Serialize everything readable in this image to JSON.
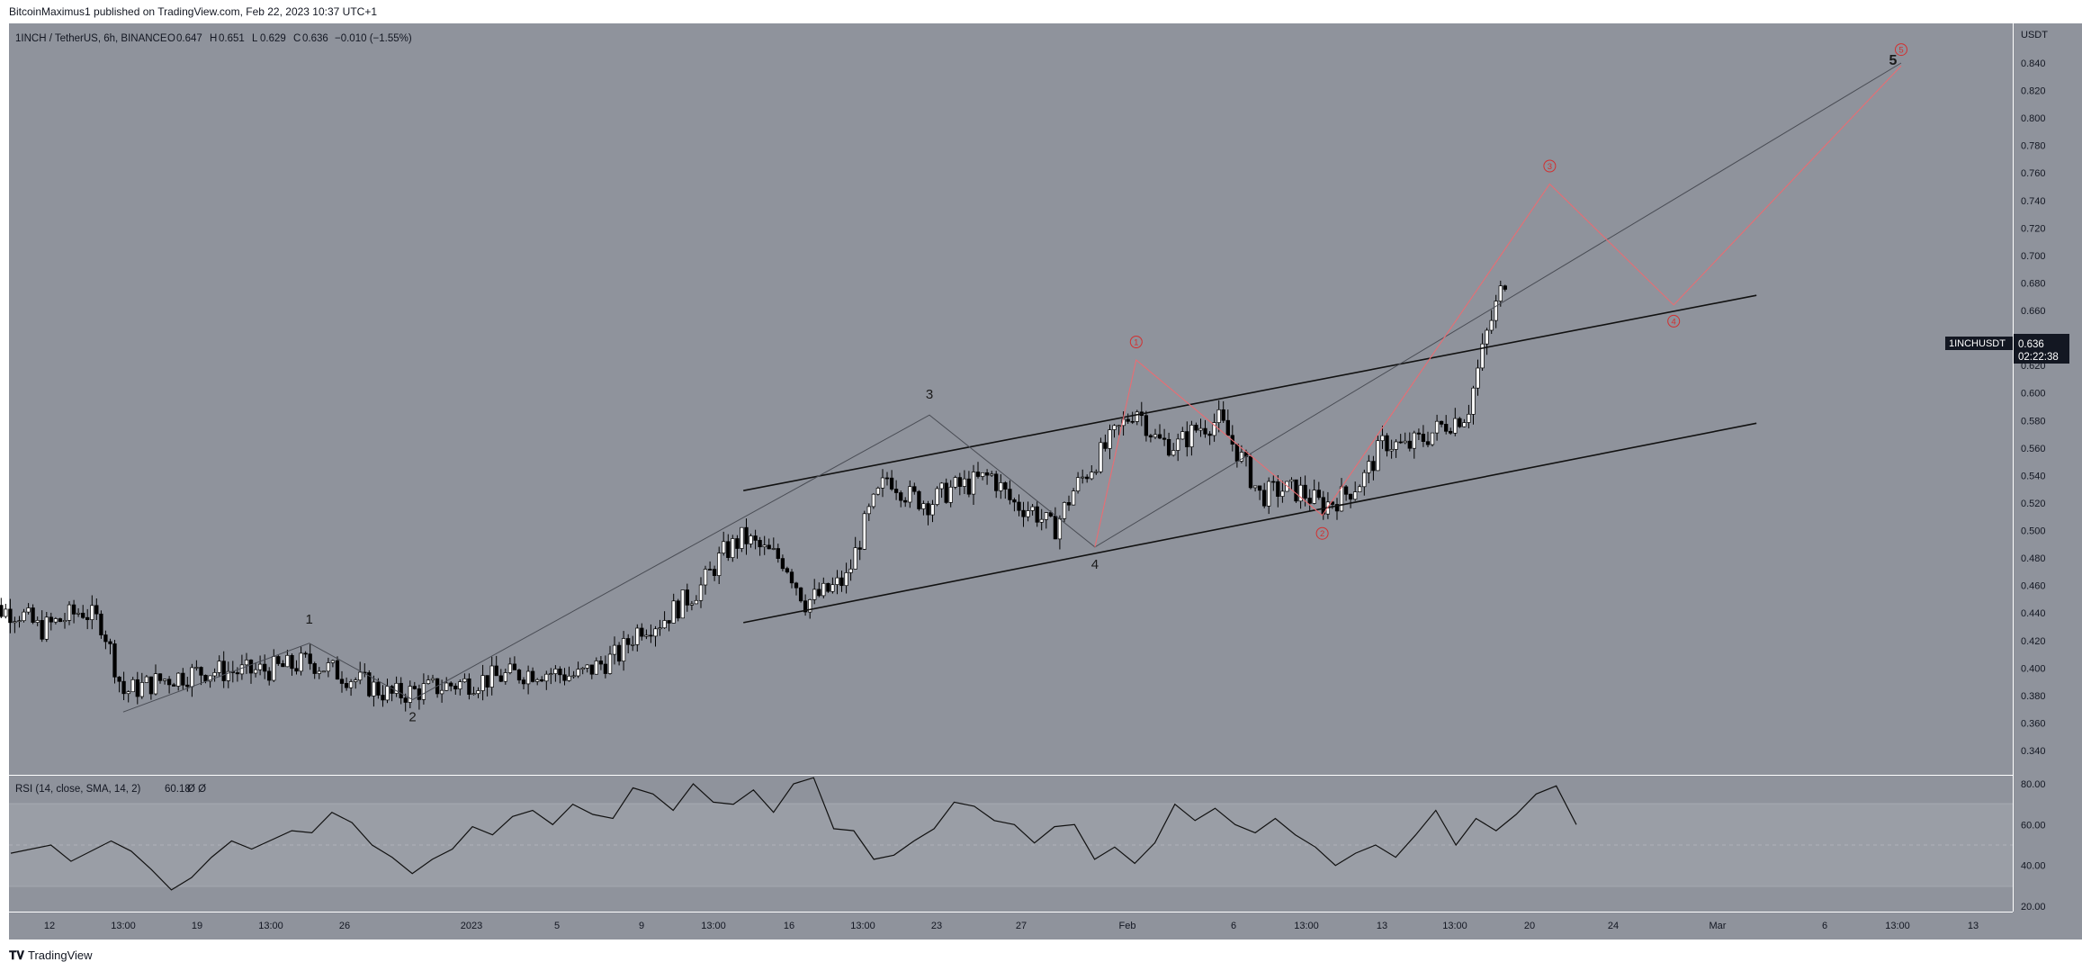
{
  "header": {
    "publisher_text": "BitcoinMaximus1 published on TradingView.com, Feb 22, 2023 10:37 UTC+1"
  },
  "footer": {
    "brand": "TradingView",
    "brand_icon": "tradingview-logo-icon"
  },
  "legend": {
    "symbol": "1INCH / TetherUS, 6h, BINANCE",
    "o_label": "O",
    "o": "0.647",
    "h_label": "H",
    "h": "0.651",
    "l_label": "L",
    "l": "0.629",
    "c_label": "C",
    "c": "0.636",
    "change": "−0.010 (−1.55%)"
  },
  "price_axis": {
    "currency": "USDT",
    "ticks": [
      "0.840",
      "0.820",
      "0.800",
      "0.780",
      "0.760",
      "0.740",
      "0.720",
      "0.700",
      "0.680",
      "0.660",
      "0.640",
      "0.620",
      "0.600",
      "0.580",
      "0.560",
      "0.540",
      "0.520",
      "0.500",
      "0.480",
      "0.460",
      "0.440",
      "0.420",
      "0.400",
      "0.380",
      "0.360",
      "0.340"
    ],
    "last_price_tag": {
      "symbol": "1INCHUSDT",
      "price": "0.636",
      "countdown": "02:22:38"
    }
  },
  "rsi": {
    "legend": "RSI (14, close, SMA, 14, 2)",
    "value": "60.18",
    "extra": "Ø  Ø",
    "ticks": [
      "80.00",
      "60.00",
      "40.00",
      "20.00"
    ]
  },
  "time_axis": {
    "labels": [
      "12",
      "13:00",
      "19",
      "13:00",
      "26",
      "2023",
      "5",
      "9",
      "13:00",
      "16",
      "13:00",
      "23",
      "27",
      "Feb",
      "6",
      "13:00",
      "13",
      "13:00",
      "20",
      "24",
      "Mar",
      "6",
      "13:00",
      "13"
    ]
  },
  "wave_labels": {
    "black": [
      "1",
      "2",
      "3",
      "4",
      "5"
    ],
    "red": [
      "1",
      "2",
      "3",
      "4",
      "5"
    ]
  },
  "colors": {
    "chart_bg": "#8f939c",
    "rsi_band": "#9a9ea6",
    "candle_up": "#ffffff",
    "candle_down": "#000000",
    "projection": "#e86d73",
    "red_label": "#d32f2f",
    "channel_line": "#111111"
  },
  "chart_data": [
    {
      "type": "candlestick",
      "title": "1INCH / TetherUS, 6h, BINANCE",
      "ylabel": "USDT",
      "ylim": [
        0.33,
        0.855
      ],
      "x_range": [
        "2022-12-10",
        "2023-03-13"
      ],
      "close_path": [
        [
          "2022-12-10",
          0.445
        ],
        [
          "2022-12-12",
          0.44
        ],
        [
          "2022-12-13",
          0.428
        ],
        [
          "2022-12-15",
          0.442
        ],
        [
          "2022-12-16",
          0.432
        ],
        [
          "2022-12-17",
          0.382
        ],
        [
          "2022-12-19",
          0.392
        ],
        [
          "2022-12-21",
          0.398
        ],
        [
          "2022-12-23",
          0.397
        ],
        [
          "2022-12-25",
          0.401
        ],
        [
          "2022-12-26",
          0.405
        ],
        [
          "2022-12-28",
          0.393
        ],
        [
          "2022-12-30",
          0.38
        ],
        [
          "2023-01-02",
          0.388
        ],
        [
          "2023-01-04",
          0.393
        ],
        [
          "2023-01-06",
          0.398
        ],
        [
          "2023-01-08",
          0.394
        ],
        [
          "2023-01-10",
          0.41
        ],
        [
          "2023-01-11",
          0.43
        ],
        [
          "2023-01-12",
          0.434
        ],
        [
          "2023-01-14",
          0.46
        ],
        [
          "2023-01-15",
          0.483
        ],
        [
          "2023-01-16",
          0.495
        ],
        [
          "2023-01-17",
          0.485
        ],
        [
          "2023-01-18",
          0.478
        ],
        [
          "2023-01-19",
          0.448
        ],
        [
          "2023-01-20",
          0.455
        ],
        [
          "2023-01-21",
          0.465
        ],
        [
          "2023-01-22",
          0.51
        ],
        [
          "2023-01-23",
          0.54
        ],
        [
          "2023-01-24",
          0.525
        ],
        [
          "2023-01-25",
          0.52
        ],
        [
          "2023-01-26",
          0.53
        ],
        [
          "2023-01-27",
          0.534
        ],
        [
          "2023-01-28",
          0.54
        ],
        [
          "2023-01-29",
          0.52
        ],
        [
          "2023-01-30",
          0.515
        ],
        [
          "2023-01-31",
          0.5
        ],
        [
          "2023-02-01",
          0.53
        ],
        [
          "2023-02-02",
          0.55
        ],
        [
          "2023-02-03",
          0.57
        ],
        [
          "2023-02-04",
          0.59
        ],
        [
          "2023-02-05",
          0.565
        ],
        [
          "2023-02-06",
          0.562
        ],
        [
          "2023-02-07",
          0.575
        ],
        [
          "2023-02-08",
          0.58
        ],
        [
          "2023-02-09",
          0.555
        ],
        [
          "2023-02-10",
          0.525
        ],
        [
          "2023-02-11",
          0.53
        ],
        [
          "2023-02-12",
          0.528
        ],
        [
          "2023-02-13",
          0.518
        ],
        [
          "2023-02-14",
          0.525
        ],
        [
          "2023-02-15",
          0.538
        ],
        [
          "2023-02-16",
          0.565
        ],
        [
          "2023-02-17",
          0.56
        ],
        [
          "2023-02-18",
          0.568
        ],
        [
          "2023-02-19",
          0.578
        ],
        [
          "2023-02-20",
          0.585
        ],
        [
          "2023-02-21",
          0.645
        ],
        [
          "2023-02-22",
          0.69
        ],
        [
          "2023-02-22",
          0.636
        ]
      ],
      "channel": {
        "upper": [
          [
            "2023-01-16",
            0.529
          ],
          [
            "2023-03-06",
            0.671
          ]
        ],
        "lower": [
          [
            "2023-01-16",
            0.433
          ],
          [
            "2023-03-06",
            0.578
          ]
        ]
      },
      "completed_waves": [
        {
          "label": "1",
          "date": "2022-12-26",
          "price": 0.418
        },
        {
          "label": "2",
          "date": "2022-12-31",
          "price": 0.377
        },
        {
          "label": "3",
          "date": "2023-01-25",
          "price": 0.584
        },
        {
          "label": "4",
          "date": "2023-02-02",
          "price": 0.488
        },
        {
          "label": "5",
          "date": "2023-03-13",
          "price": 0.84
        }
      ],
      "projected_waves": [
        {
          "label": "1",
          "date": "2023-02-04",
          "price": 0.624
        },
        {
          "label": "2",
          "date": "2023-02-13",
          "price": 0.511
        },
        {
          "label": "3",
          "date": "2023-02-24",
          "price": 0.752
        },
        {
          "label": "4",
          "date": "2023-03-02",
          "price": 0.664
        },
        {
          "label": "5",
          "date": "2023-03-13",
          "price": 0.838
        }
      ]
    },
    {
      "type": "line",
      "title": "RSI (14, close, SMA, 14, 2)",
      "ylim": [
        17,
        86
      ],
      "bands": [
        30,
        50,
        70
      ],
      "series": [
        {
          "values": [
            [
              0.0,
              46
            ],
            [
              0.02,
              50
            ],
            [
              0.03,
              42
            ],
            [
              0.05,
              52
            ],
            [
              0.06,
              47
            ],
            [
              0.07,
              38
            ],
            [
              0.08,
              28
            ],
            [
              0.09,
              34
            ],
            [
              0.1,
              44
            ],
            [
              0.11,
              52
            ],
            [
              0.12,
              48
            ],
            [
              0.14,
              57
            ],
            [
              0.15,
              56
            ],
            [
              0.16,
              66
            ],
            [
              0.17,
              61
            ],
            [
              0.18,
              50
            ],
            [
              0.19,
              44
            ],
            [
              0.2,
              36
            ],
            [
              0.21,
              43
            ],
            [
              0.22,
              48
            ],
            [
              0.23,
              59
            ],
            [
              0.24,
              55
            ],
            [
              0.25,
              64
            ],
            [
              0.26,
              67
            ],
            [
              0.27,
              60
            ],
            [
              0.28,
              70
            ],
            [
              0.29,
              65
            ],
            [
              0.3,
              63
            ],
            [
              0.31,
              78
            ],
            [
              0.32,
              75
            ],
            [
              0.33,
              67
            ],
            [
              0.34,
              80
            ],
            [
              0.35,
              71
            ],
            [
              0.36,
              70
            ],
            [
              0.37,
              77
            ],
            [
              0.38,
              66
            ],
            [
              0.39,
              80
            ],
            [
              0.4,
              83
            ],
            [
              0.41,
              58
            ],
            [
              0.42,
              57
            ],
            [
              0.43,
              43
            ],
            [
              0.44,
              45
            ],
            [
              0.45,
              52
            ],
            [
              0.46,
              58
            ],
            [
              0.47,
              71
            ],
            [
              0.48,
              69
            ],
            [
              0.49,
              62
            ],
            [
              0.5,
              60
            ],
            [
              0.51,
              51
            ],
            [
              0.52,
              59
            ],
            [
              0.53,
              60
            ],
            [
              0.54,
              43
            ],
            [
              0.55,
              49
            ],
            [
              0.56,
              41
            ],
            [
              0.57,
              51
            ],
            [
              0.58,
              70
            ],
            [
              0.59,
              62
            ],
            [
              0.6,
              68
            ],
            [
              0.61,
              60
            ],
            [
              0.62,
              56
            ],
            [
              0.63,
              63
            ],
            [
              0.64,
              55
            ],
            [
              0.65,
              49
            ],
            [
              0.66,
              40
            ],
            [
              0.67,
              46
            ],
            [
              0.68,
              50
            ],
            [
              0.69,
              44
            ],
            [
              0.7,
              55
            ],
            [
              0.71,
              67
            ],
            [
              0.72,
              50
            ],
            [
              0.73,
              63
            ],
            [
              0.74,
              57
            ],
            [
              0.75,
              65
            ],
            [
              0.76,
              75
            ],
            [
              0.77,
              79
            ],
            [
              0.78,
              60
            ]
          ]
        }
      ]
    }
  ]
}
